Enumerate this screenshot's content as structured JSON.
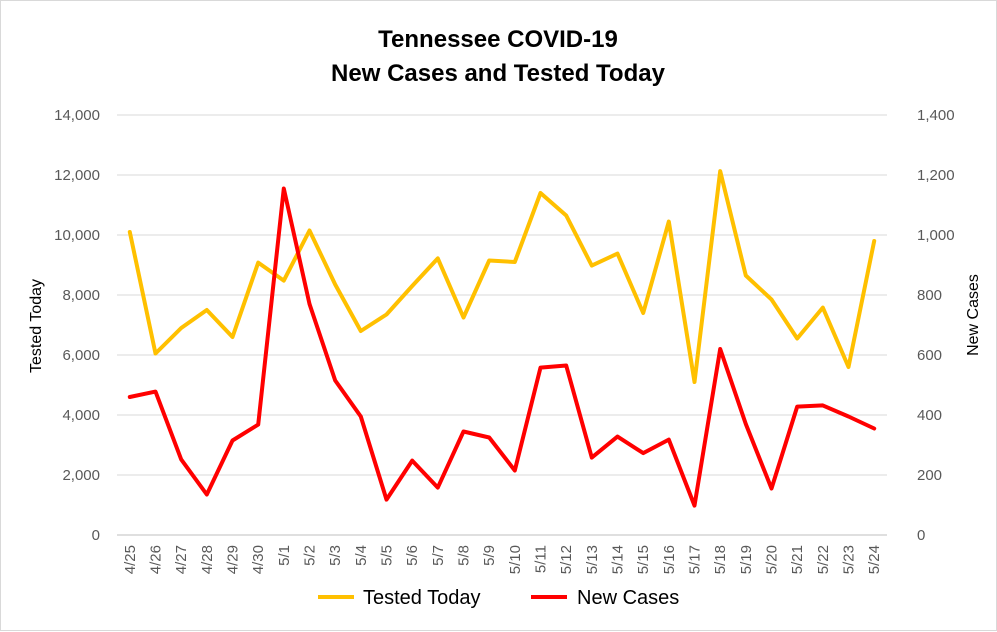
{
  "chart_data": {
    "type": "line",
    "title": [
      "Tennessee COVID-19",
      "New Cases and Tested Today"
    ],
    "x": [
      "4/25",
      "4/26",
      "4/27",
      "4/28",
      "4/29",
      "4/30",
      "5/1",
      "5/2",
      "5/3",
      "5/4",
      "5/5",
      "5/6",
      "5/7",
      "5/8",
      "5/9",
      "5/10",
      "5/11",
      "5/12",
      "5/13",
      "5/14",
      "5/15",
      "5/16",
      "5/17",
      "5/18",
      "5/19",
      "5/20",
      "5/21",
      "5/22",
      "5/23",
      "5/24"
    ],
    "y_left": {
      "label": "Tested Today",
      "lim": [
        0,
        14000
      ],
      "ticks": [
        0,
        2000,
        4000,
        6000,
        8000,
        10000,
        12000,
        14000
      ],
      "tick_labels": [
        "0",
        "2,000",
        "4,000",
        "6,000",
        "8,000",
        "10,000",
        "12,000",
        "14,000"
      ]
    },
    "y_right": {
      "label": "New Cases",
      "lim": [
        0,
        1400
      ],
      "ticks": [
        0,
        200,
        400,
        600,
        800,
        1000,
        1200,
        1400
      ],
      "tick_labels": [
        "0",
        "200",
        "400",
        "600",
        "800",
        "1,000",
        "1,200",
        "1,400"
      ]
    },
    "series": [
      {
        "name": "Tested Today",
        "axis": "left",
        "color": "#FFC000",
        "values": [
          10100,
          6050,
          6900,
          7500,
          6600,
          9080,
          8480,
          10150,
          8350,
          6800,
          7350,
          8300,
          9220,
          7250,
          9150,
          9100,
          11400,
          10650,
          8980,
          9380,
          7400,
          10450,
          5100,
          12130,
          8650,
          7850,
          6550,
          7580,
          5600,
          9800
        ]
      },
      {
        "name": "New Cases",
        "axis": "right",
        "color": "#FF0000",
        "values": [
          460,
          478,
          252,
          135,
          315,
          368,
          1155,
          770,
          515,
          395,
          118,
          248,
          158,
          345,
          325,
          215,
          558,
          565,
          258,
          328,
          273,
          318,
          98,
          620,
          370,
          155,
          428,
          432,
          395,
          355
        ]
      }
    ],
    "grid": true,
    "legend": "bottom"
  }
}
